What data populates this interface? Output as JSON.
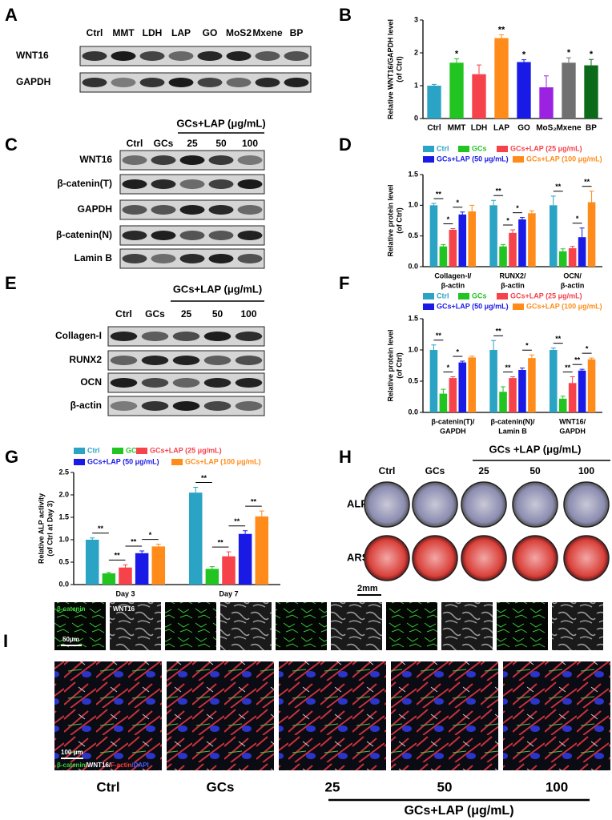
{
  "panel_labels": [
    "A",
    "B",
    "C",
    "D",
    "E",
    "F",
    "G",
    "H",
    "I"
  ],
  "blots": [
    {
      "lanes": [
        "Ctrl",
        "MMT",
        "LDH",
        "LAP",
        "GO",
        "MoS2",
        "Mxene",
        "BP"
      ],
      "rows": [
        "WNT16",
        "GAPDH"
      ]
    },
    {
      "group": "GCs+LAP (μg/mL)",
      "lanes": [
        "Ctrl",
        "GCs",
        "25",
        "50",
        "100"
      ],
      "rows": [
        "WNT16",
        "β-catenin(T)",
        "GAPDH",
        "β-catenin(N)",
        "Lamin B"
      ]
    },
    {
      "group": "GCs+LAP (μg/mL)",
      "lanes": [
        "Ctrl",
        "GCs",
        "25",
        "50",
        "100"
      ],
      "rows": [
        "Collagen-I",
        "RUNX2",
        "OCN",
        "β-actin"
      ]
    }
  ],
  "chart_data": [
    {
      "type": "bar",
      "ylabel": [
        "Relative WNT16/GAPDH level",
        "(of Ctrl)"
      ],
      "categories": [
        "Ctrl",
        "MMT",
        "LDH",
        "LAP",
        "GO",
        "MoS₂",
        "Mxene",
        "BP"
      ],
      "values": [
        1.0,
        1.7,
        1.35,
        2.45,
        1.72,
        0.95,
        1.7,
        1.62
      ],
      "errors": [
        0.04,
        0.12,
        0.28,
        0.1,
        0.07,
        0.35,
        0.15,
        0.18
      ],
      "colors": [
        "#2aa3c4",
        "#22c422",
        "#f5424b",
        "#ff8c1a",
        "#1a1ae6",
        "#9b22e0",
        "#707070",
        "#0b6b1a"
      ],
      "significance": [
        null,
        "*",
        null,
        "**",
        "*",
        null,
        "*",
        "*"
      ],
      "ylim": [
        0,
        3
      ],
      "yticks": [
        0,
        1,
        2,
        3
      ]
    },
    {
      "type": "bar",
      "ylabel": [
        "Relative protein level",
        "(of Ctrl)"
      ],
      "categories": [
        [
          "Collagen-I/",
          "β-actin"
        ],
        [
          "RUNX2/",
          "β-actin"
        ],
        [
          "OCN/",
          "β-actin"
        ]
      ],
      "series": [
        {
          "name": "Ctrl",
          "color": "#2aa3c4",
          "values": [
            1.0,
            1.0,
            1.0
          ],
          "errors": [
            0.03,
            0.08,
            0.15
          ]
        },
        {
          "name": "GCs",
          "color": "#22c422",
          "values": [
            0.33,
            0.33,
            0.25
          ],
          "errors": [
            0.03,
            0.03,
            0.04
          ]
        },
        {
          "name": "GCs+LAP (25 μg/mL)",
          "color": "#f5424b",
          "values": [
            0.6,
            0.55,
            0.3
          ],
          "errors": [
            0.02,
            0.05,
            0.03
          ]
        },
        {
          "name": "GCs+LAP (50 μg/mL)",
          "color": "#1a1ae6",
          "values": [
            0.85,
            0.77,
            0.48
          ],
          "errors": [
            0.04,
            0.03,
            0.15
          ]
        },
        {
          "name": "GCs+LAP (100 μg/mL)",
          "color": "#ff8c1a",
          "values": [
            0.9,
            0.87,
            1.05
          ],
          "errors": [
            0.1,
            0.04,
            0.18
          ]
        }
      ],
      "significance": [
        [
          {
            "pair": [
              0,
              1
            ],
            "label": "**"
          },
          {
            "pair": [
              1,
              2
            ],
            "label": "*"
          },
          {
            "pair": [
              2,
              3
            ],
            "label": "*"
          }
        ],
        [
          {
            "pair": [
              0,
              1
            ],
            "label": "**"
          },
          {
            "pair": [
              1,
              2
            ],
            "label": "*"
          },
          {
            "pair": [
              2,
              3
            ],
            "label": "*"
          }
        ],
        [
          {
            "pair": [
              0,
              1
            ],
            "label": "**"
          },
          {
            "pair": [
              2,
              3
            ],
            "label": "*"
          },
          {
            "pair": [
              3,
              4
            ],
            "label": "**"
          }
        ]
      ],
      "ylim": [
        0,
        1.5
      ],
      "yticks": [
        {
          "value": 0,
          "label": "0.0"
        },
        0.5,
        {
          "value": 1,
          "label": "1.0"
        },
        1.5
      ]
    },
    {
      "type": "bar",
      "ylabel": [
        "Relative protein level",
        "(of Ctrl)"
      ],
      "categories": [
        [
          "β-catenin(T)/",
          "GAPDH"
        ],
        [
          "β-catenin(N)/",
          "Lamin B"
        ],
        [
          "WNT16/",
          "GAPDH"
        ]
      ],
      "series": [
        {
          "name": "Ctrl",
          "color": "#2aa3c4",
          "values": [
            1.0,
            1.0,
            1.0
          ],
          "errors": [
            0.08,
            0.15,
            0.03
          ]
        },
        {
          "name": "GCs",
          "color": "#22c422",
          "values": [
            0.3,
            0.33,
            0.22
          ],
          "errors": [
            0.07,
            0.08,
            0.04
          ]
        },
        {
          "name": "GCs+LAP (25 μg/mL)",
          "color": "#f5424b",
          "values": [
            0.55,
            0.55,
            0.47
          ],
          "errors": [
            0.02,
            0.02,
            0.1
          ]
        },
        {
          "name": "GCs+LAP (50 μg/mL)",
          "color": "#1a1ae6",
          "values": [
            0.8,
            0.68,
            0.67
          ],
          "errors": [
            0.02,
            0.03,
            0.02
          ]
        },
        {
          "name": "GCs+LAP (100 μg/mL)",
          "color": "#ff8c1a",
          "values": [
            0.88,
            0.87,
            0.85
          ],
          "errors": [
            0.02,
            0.05,
            0.02
          ]
        }
      ],
      "significance": [
        [
          {
            "pair": [
              0,
              1
            ],
            "label": "**"
          },
          {
            "pair": [
              1,
              2
            ],
            "label": "*"
          },
          {
            "pair": [
              2,
              3
            ],
            "label": "*"
          }
        ],
        [
          {
            "pair": [
              0,
              1
            ],
            "label": "**"
          },
          {
            "pair": [
              1,
              2
            ],
            "label": "**"
          },
          {
            "pair": [
              3,
              4
            ],
            "label": "*"
          }
        ],
        [
          {
            "pair": [
              0,
              1
            ],
            "label": "**"
          },
          {
            "pair": [
              1,
              2
            ],
            "label": "**"
          },
          {
            "pair": [
              2,
              3
            ],
            "label": "**"
          },
          {
            "pair": [
              3,
              4
            ],
            "label": "*"
          }
        ]
      ],
      "ylim": [
        0,
        1.5
      ],
      "yticks": [
        {
          "value": 0,
          "label": "0.0"
        },
        0.5,
        {
          "value": 1,
          "label": "1.0"
        },
        1.5
      ]
    },
    {
      "type": "bar",
      "ylabel": [
        "Relative ALP activity",
        "(of Ctrl at Day 3)"
      ],
      "categories": [
        "Day 3",
        "Day 7"
      ],
      "series": [
        {
          "name": "Ctrl",
          "color": "#2aa3c4",
          "values": [
            1.0,
            2.05
          ],
          "errors": [
            0.04,
            0.12
          ]
        },
        {
          "name": "GCs",
          "color": "#22c422",
          "values": [
            0.25,
            0.35
          ],
          "errors": [
            0.02,
            0.05
          ]
        },
        {
          "name": "GCs+LAP (25 μg/mL)",
          "color": "#f5424b",
          "values": [
            0.38,
            0.63
          ],
          "errors": [
            0.06,
            0.1
          ]
        },
        {
          "name": "GCs+LAP (50 μg/mL)",
          "color": "#1a1ae6",
          "values": [
            0.7,
            1.13
          ],
          "errors": [
            0.05,
            0.07
          ]
        },
        {
          "name": "GCs+LAP (100 μg/mL)",
          "color": "#ff8c1a",
          "values": [
            0.85,
            1.52
          ],
          "errors": [
            0.05,
            0.12
          ]
        }
      ],
      "significance": [
        [
          {
            "pair": [
              0,
              1
            ],
            "label": "**"
          },
          {
            "pair": [
              1,
              2
            ],
            "label": "**"
          },
          {
            "pair": [
              2,
              3
            ],
            "label": "**"
          },
          {
            "pair": [
              3,
              4
            ],
            "label": "*"
          }
        ],
        [
          {
            "pair": [
              0,
              1
            ],
            "label": "**"
          },
          {
            "pair": [
              1,
              2
            ],
            "label": "**"
          },
          {
            "pair": [
              2,
              3
            ],
            "label": "**"
          },
          {
            "pair": [
              3,
              4
            ],
            "label": "**"
          }
        ]
      ],
      "ylim": [
        0,
        2.5
      ],
      "yticks": [
        {
          "value": 0,
          "label": "0.0"
        },
        0.5,
        {
          "value": 1,
          "label": "1.0"
        },
        1.5,
        {
          "value": 2,
          "label": "2.0"
        },
        2.5
      ]
    }
  ],
  "panel_h": {
    "group": "GCs +LAP (μg/mL)",
    "columns": [
      "Ctrl",
      "GCs",
      "25",
      "50",
      "100"
    ],
    "rows": [
      "ALP",
      "ARS"
    ],
    "scale": "2mm"
  },
  "panel_i": {
    "channels": [
      "β-catenin",
      "WNT16"
    ],
    "scale_small": "50μm",
    "scale_large": "100 μm",
    "stain_legend": [
      "β-catenin",
      "/WNT16/",
      "F-actin",
      "/DAPI"
    ],
    "columns": [
      "Ctrl",
      "GCs",
      "25",
      "50",
      "100"
    ],
    "group": "GCs+LAP (μg/mL)"
  }
}
